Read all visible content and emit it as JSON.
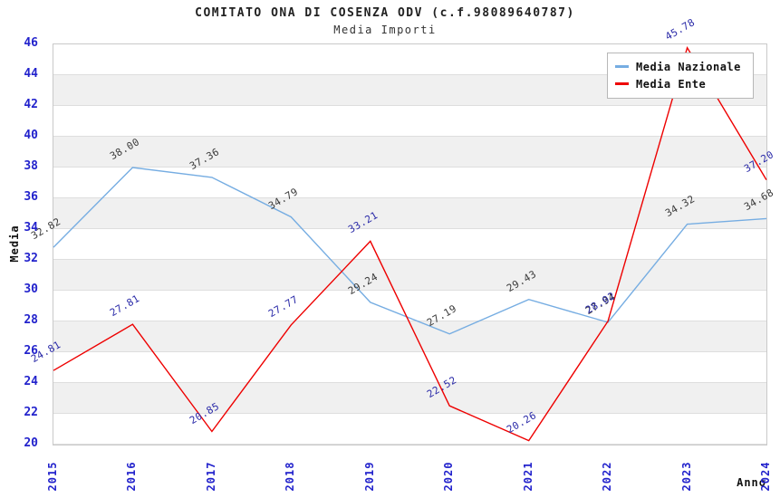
{
  "title": "COMITATO ONA DI COSENZA ODV (c.f.98089640787)",
  "subtitle": "Media Importi",
  "axes": {
    "y_label": "Media",
    "x_label": "Anno",
    "tick_color": "#2222cc"
  },
  "legend": {
    "position": "top-right"
  },
  "colors": {
    "band_gray": "#f0f0f0",
    "grid_line": "#dedede",
    "plot_border": "#c9c9c9",
    "nazionale_line": "#76ade2",
    "ente_line": "#ee0000",
    "nazionale_label": "#3a3a3a",
    "ente_label": "#2a2aa8"
  },
  "chart_data": {
    "type": "line",
    "title": "COMITATO ONA DI COSENZA ODV (c.f.98089640787)",
    "subtitle": "Media Importi",
    "xlabel": "Anno",
    "ylabel": "Media",
    "ylim": [
      20,
      46
    ],
    "ytick_step": 2,
    "grid": "horizontal-bands",
    "legend_position": "top-right",
    "x": [
      "2015",
      "2016",
      "2017",
      "2018",
      "2019",
      "2020",
      "2021",
      "2022",
      "2023",
      "2024"
    ],
    "series": [
      {
        "name": "Media Nazionale",
        "color": "#76ade2",
        "label_color": "#3a3a3a",
        "values": [
          32.82,
          38.0,
          37.36,
          34.79,
          29.24,
          27.19,
          29.43,
          27.94,
          34.32,
          34.68
        ]
      },
      {
        "name": "Media Ente",
        "color": "#ee0000",
        "label_color": "#2a2aa8",
        "values": [
          24.81,
          27.81,
          20.85,
          27.77,
          33.21,
          22.52,
          20.26,
          28.02,
          45.78,
          37.2
        ]
      }
    ]
  }
}
